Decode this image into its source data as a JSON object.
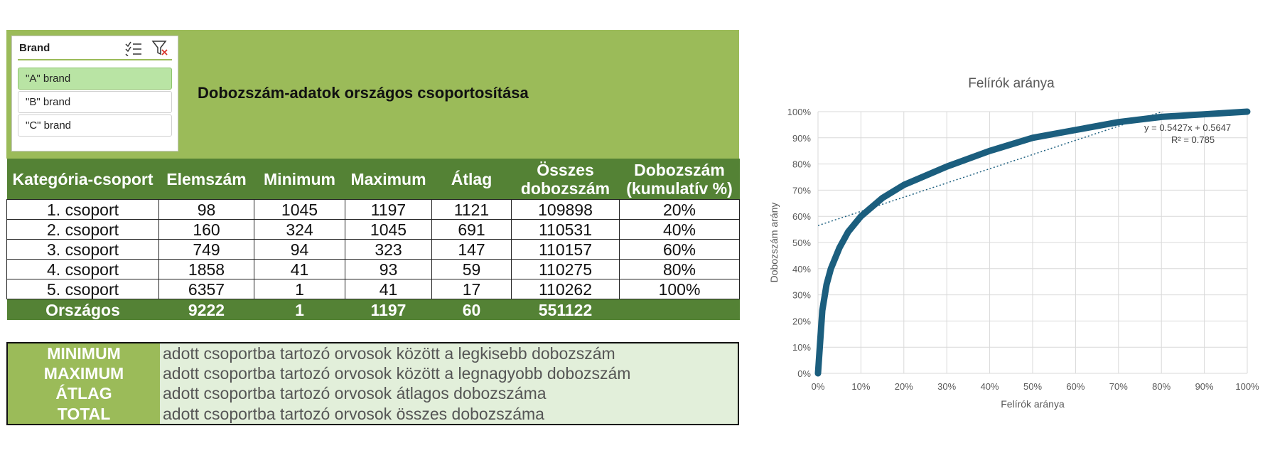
{
  "slicer": {
    "title": "Brand",
    "items": [
      "\"A\" brand",
      "\"B\" brand",
      "\"C\" brand"
    ],
    "selected": 0
  },
  "header": {
    "title": "Dobozszám-adatok országos csoportosítása"
  },
  "table": {
    "columns": [
      "Kategória-csoport",
      "Elemszám",
      "Minimum",
      "Maximum",
      "Átlag",
      "Összes dobozszám",
      "Dobozszám (kumulatív %)"
    ],
    "rows": [
      [
        "1. csoport",
        98,
        1045,
        1197,
        1121,
        109898,
        "20%"
      ],
      [
        "2. csoport",
        160,
        324,
        1045,
        691,
        110531,
        "40%"
      ],
      [
        "3. csoport",
        749,
        94,
        323,
        147,
        110157,
        "60%"
      ],
      [
        "4. csoport",
        1858,
        41,
        93,
        59,
        110275,
        "80%"
      ],
      [
        "5. csoport",
        6357,
        1,
        41,
        17,
        110262,
        "100%"
      ]
    ],
    "total": [
      "Országos",
      9222,
      1,
      1197,
      60,
      551122
    ]
  },
  "definitions": [
    {
      "term": "MINIMUM",
      "text": "adott csoportba tartozó orvosok között a legkisebb dobozszám"
    },
    {
      "term": "MAXIMUM",
      "text": "adott csoportba tartozó orvosok között a legnagyobb dobozszám"
    },
    {
      "term": "ÁTLAG",
      "text": "adott csoportba tartozó orvosok átlagos dobozszáma"
    },
    {
      "term": "TOTAL",
      "text": "adott csoportba tartozó orvosok összes dobozszáma"
    }
  ],
  "chart_data": {
    "type": "line",
    "title": "Felírók aránya",
    "x_label": "Felírók aránya",
    "y_label": "Dobozszám arány",
    "x": [
      0,
      0.005,
      0.01,
      0.02,
      0.03,
      0.05,
      0.07,
      0.1,
      0.15,
      0.2,
      0.3,
      0.4,
      0.5,
      0.6,
      0.7,
      0.8,
      0.9,
      1.0
    ],
    "series": [
      {
        "name": "Dobozszám arány",
        "color": "#1b5e7e",
        "values": [
          0,
          0.12,
          0.24,
          0.34,
          0.4,
          0.48,
          0.54,
          0.6,
          0.67,
          0.72,
          0.79,
          0.85,
          0.9,
          0.93,
          0.96,
          0.98,
          0.99,
          1.0
        ]
      }
    ],
    "trendline": {
      "slope": 0.5427,
      "intercept": 0.5647,
      "color": "#1b5e7e",
      "label": "y = 0.5427x + 0.5647",
      "r2_label": "R² = 0.785"
    },
    "xlim": [
      0,
      1
    ],
    "ylim": [
      0,
      1
    ],
    "xticks": [
      {
        "value": 0,
        "label": "0%"
      },
      {
        "value": 0.1,
        "label": "10%"
      },
      {
        "value": 0.2,
        "label": "20%"
      },
      {
        "value": 0.3,
        "label": "30%"
      },
      {
        "value": 0.4,
        "label": "40%"
      },
      {
        "value": 0.5,
        "label": "50%"
      },
      {
        "value": 0.6,
        "label": "60%"
      },
      {
        "value": 0.7,
        "label": "70%"
      },
      {
        "value": 0.8,
        "label": "80%"
      },
      {
        "value": 0.9,
        "label": "90%"
      },
      {
        "value": 1,
        "label": "100%"
      }
    ],
    "yticks": [
      {
        "value": 0,
        "label": "0%"
      },
      {
        "value": 0.1,
        "label": "10%"
      },
      {
        "value": 0.2,
        "label": "20%"
      },
      {
        "value": 0.3,
        "label": "30%"
      },
      {
        "value": 0.4,
        "label": "40%"
      },
      {
        "value": 0.5,
        "label": "50%"
      },
      {
        "value": 0.6,
        "label": "60%"
      },
      {
        "value": 0.7,
        "label": "70%"
      },
      {
        "value": 0.8,
        "label": "80%"
      },
      {
        "value": 0.9,
        "label": "90%"
      },
      {
        "value": 1,
        "label": "100%"
      }
    ],
    "grid": true
  }
}
